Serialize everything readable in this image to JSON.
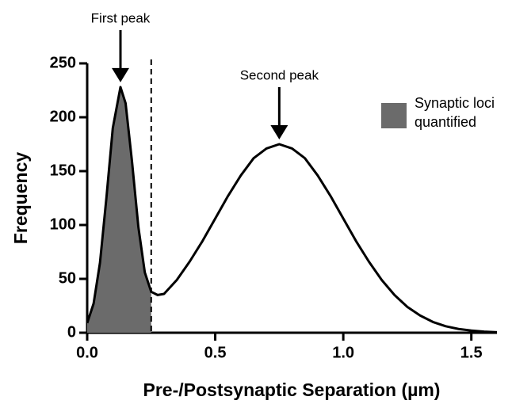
{
  "chart_data": {
    "type": "line",
    "x_label": "Pre-/Postsynaptic Separation (µm)",
    "y_label": "Frequency",
    "x": [
      0,
      0.025,
      0.05,
      0.075,
      0.1,
      0.13,
      0.15,
      0.175,
      0.2,
      0.225,
      0.25,
      0.275,
      0.3,
      0.35,
      0.4,
      0.45,
      0.5,
      0.55,
      0.6,
      0.65,
      0.7,
      0.75,
      0.8,
      0.85,
      0.9,
      0.95,
      1.0,
      1.05,
      1.1,
      1.15,
      1.2,
      1.25,
      1.3,
      1.35,
      1.4,
      1.45,
      1.5,
      1.55,
      1.6
    ],
    "series": [
      {
        "color": "#000000",
        "values": [
          9,
          27,
          65,
          125,
          190,
          228,
          213,
          159,
          98,
          56,
          38,
          35,
          36,
          49,
          66,
          85,
          106,
          127,
          146,
          162,
          171,
          175,
          171,
          162,
          146,
          127,
          106,
          85,
          66,
          49,
          35,
          24,
          16,
          10,
          6,
          3.5,
          2,
          1,
          0.5
        ]
      }
    ],
    "shade": {
      "name": "Synaptic loci quantified",
      "color": "#6b6b6b",
      "x_max": 0.25
    },
    "annotations": [
      {
        "text": "First peak",
        "x": 0.13,
        "y": 228
      },
      {
        "text": "Second peak",
        "x": 0.75,
        "y": 175
      }
    ],
    "xlim": [
      0,
      1.6
    ],
    "ylim": [
      0,
      250
    ],
    "xticks": [
      {
        "value": 0,
        "label": "0.0"
      },
      0.5,
      {
        "value": 1,
        "label": "1.0"
      },
      1.5
    ],
    "yticks": [
      0,
      50,
      100,
      150,
      200,
      250
    ]
  }
}
